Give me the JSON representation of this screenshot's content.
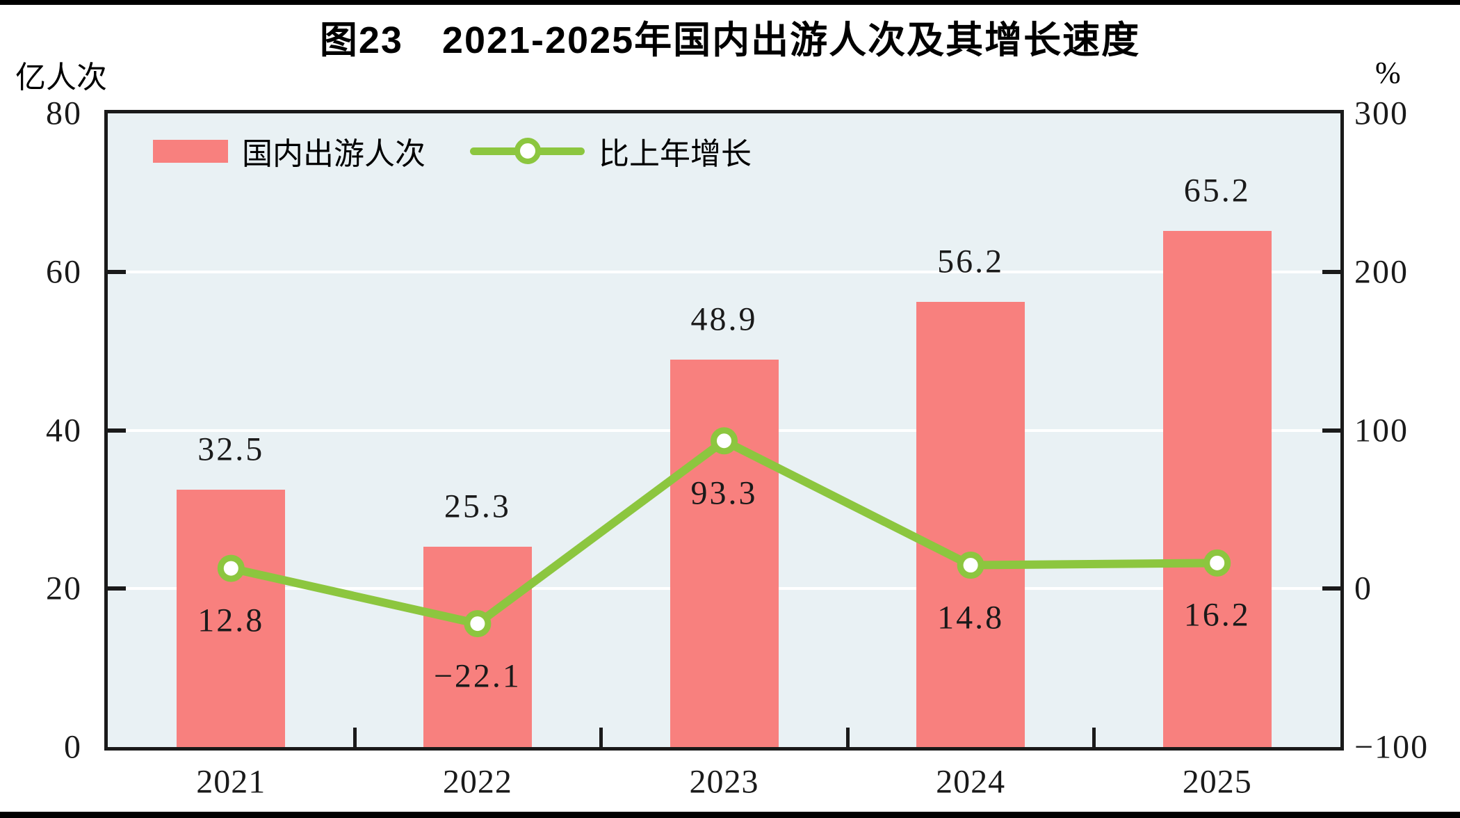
{
  "colors": {
    "bar": "#F8807E",
    "line": "#8CC63F",
    "marker_fill": "#FFFFFF",
    "plot_background": "#E9F1F4",
    "gridline": "#FFFFFF",
    "frame": "#1A1A1A",
    "text": "#000000"
  },
  "chart_data": {
    "type": "bar",
    "subtype": "bar+line dual axis",
    "title": "图23　2021-2025年国内出游人次及其增长速度",
    "categories": [
      "2021",
      "2022",
      "2023",
      "2024",
      "2025"
    ],
    "series": [
      {
        "name": "国内出游人次",
        "type": "bar",
        "axis": "left",
        "values": [
          32.5,
          25.3,
          48.9,
          56.2,
          65.2
        ],
        "labels": [
          "32.5",
          "25.3",
          "48.9",
          "56.2",
          "65.2"
        ]
      },
      {
        "name": "比上年增长",
        "type": "line",
        "axis": "right",
        "values": [
          12.8,
          -22.1,
          93.3,
          14.8,
          16.2
        ],
        "labels": [
          "12.8",
          "−22.1",
          "93.3",
          "14.8",
          "16.2"
        ]
      }
    ],
    "left_axis": {
      "label": "亿人次",
      "min": 0,
      "max": 80,
      "ticks": [
        80,
        60,
        40,
        20,
        0
      ],
      "tick_labels": [
        "80",
        "60",
        "40",
        "20",
        "0"
      ]
    },
    "right_axis": {
      "label": "%",
      "min": -100,
      "max": 300,
      "ticks": [
        300,
        200,
        100,
        0,
        -100
      ],
      "tick_labels": [
        "300",
        "200",
        "100",
        "0",
        "−100"
      ]
    },
    "grid": true,
    "legend_position": "top-left"
  }
}
